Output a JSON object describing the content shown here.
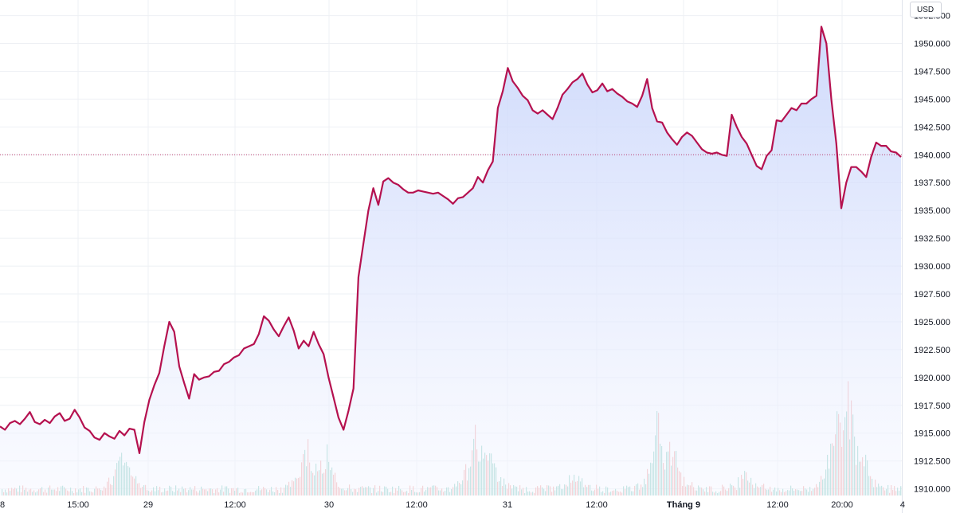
{
  "currency": "USD",
  "colors": {
    "line": "#b5114f",
    "area_top": "#c6d3fb",
    "area_bottom": "#f5f7ff",
    "grid": "#eef0f4",
    "ref_line": "#b5114f",
    "volume_up": "#8fcfc6",
    "volume_down": "#f2a9a9",
    "axis_text": "#131722"
  },
  "chart_data": {
    "type": "area",
    "y_axis": {
      "ticks": [
        "1952.500",
        "1950.000",
        "1947.500",
        "1945.000",
        "1942.500",
        "1940.000",
        "1937.500",
        "1935.000",
        "1932.500",
        "1930.000",
        "1927.500",
        "1925.000",
        "1922.500",
        "1920.000",
        "1917.500",
        "1915.000",
        "1912.500",
        "1910.000"
      ],
      "ylim": [
        1909.4,
        1953.9
      ],
      "reference_line": 1940.0
    },
    "x_axis": {
      "labels": [
        {
          "text": "8",
          "bold": false
        },
        {
          "text": "15:00",
          "bold": false
        },
        {
          "text": "29",
          "bold": false
        },
        {
          "text": "12:00",
          "bold": false
        },
        {
          "text": "30",
          "bold": false
        },
        {
          "text": "12:00",
          "bold": false
        },
        {
          "text": "31",
          "bold": false
        },
        {
          "text": "12:00",
          "bold": false
        },
        {
          "text": "Tháng 9",
          "bold": true
        },
        {
          "text": "12:00",
          "bold": false
        },
        {
          "text": "20:00",
          "bold": false
        },
        {
          "text": "4",
          "bold": false
        }
      ]
    },
    "series": [
      {
        "values": [
          1915.6,
          1915.3,
          1915.9,
          1916.1,
          1915.8,
          1916.3,
          1916.9,
          1916.0,
          1915.8,
          1916.2,
          1915.9,
          1916.5,
          1916.8,
          1916.1,
          1916.3,
          1917.1,
          1916.4,
          1915.5,
          1915.2,
          1914.6,
          1914.4,
          1915.0,
          1914.7,
          1914.5,
          1915.2,
          1914.8,
          1915.4,
          1915.3,
          1913.2,
          1916.0,
          1918.0,
          1919.3,
          1920.4,
          1922.8,
          1925.0,
          1924.1,
          1921.0,
          1919.5,
          1918.1,
          1920.3,
          1919.8,
          1920.0,
          1920.1,
          1920.5,
          1920.6,
          1921.2,
          1921.4,
          1921.8,
          1922.0,
          1922.6,
          1922.8,
          1923.0,
          1923.9,
          1925.5,
          1925.1,
          1924.3,
          1923.7,
          1924.6,
          1925.4,
          1924.2,
          1922.6,
          1923.3,
          1922.8,
          1924.1,
          1923.0,
          1922.1,
          1920.0,
          1918.2,
          1916.4,
          1915.3,
          1917.0,
          1919.0,
          1929.0,
          1932.0,
          1935.0,
          1937.0,
          1935.5,
          1937.6,
          1937.9,
          1937.5,
          1937.3,
          1936.9,
          1936.6,
          1936.6,
          1936.8,
          1936.7,
          1936.6,
          1936.5,
          1936.6,
          1936.3,
          1936.0,
          1935.6,
          1936.1,
          1936.2,
          1936.6,
          1937.0,
          1938.0,
          1937.5,
          1938.6,
          1939.4,
          1944.2,
          1945.7,
          1947.8,
          1946.6,
          1946.0,
          1945.3,
          1944.9,
          1944.0,
          1943.7,
          1944.0,
          1943.6,
          1943.2,
          1944.2,
          1945.4,
          1945.9,
          1946.5,
          1946.8,
          1947.3,
          1946.3,
          1945.6,
          1945.8,
          1946.4,
          1945.7,
          1945.9,
          1945.5,
          1945.2,
          1944.8,
          1944.6,
          1944.3,
          1945.3,
          1946.8,
          1944.2,
          1943.0,
          1942.9,
          1942.0,
          1941.4,
          1940.9,
          1941.6,
          1942.0,
          1941.7,
          1941.1,
          1940.5,
          1940.2,
          1940.1,
          1940.2,
          1940.0,
          1939.9,
          1943.6,
          1942.5,
          1941.6,
          1941.0,
          1940.0,
          1939.0,
          1938.7,
          1939.9,
          1940.4,
          1943.1,
          1943.0,
          1943.6,
          1944.2,
          1944.0,
          1944.6,
          1944.6,
          1945.0,
          1945.3,
          1951.5,
          1950.0,
          1945.0,
          1941.0,
          1935.2,
          1937.5,
          1938.9,
          1938.9,
          1938.5,
          1938.0,
          1939.8,
          1941.1,
          1940.8,
          1940.8,
          1940.3,
          1940.2,
          1939.8
        ]
      }
    ]
  }
}
